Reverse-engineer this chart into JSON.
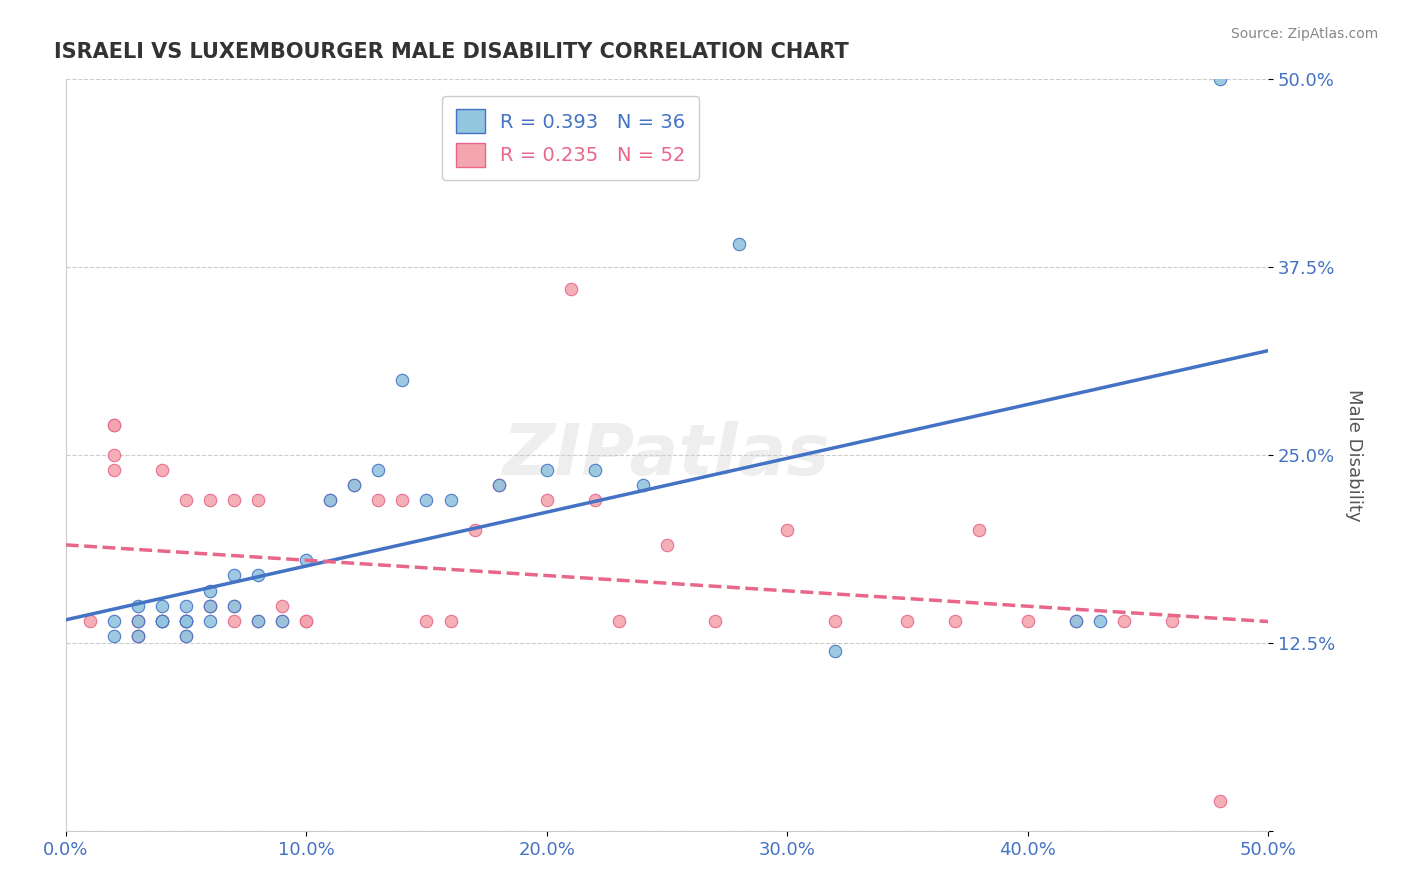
{
  "title": "ISRAELI VS LUXEMBOURGER MALE DISABILITY CORRELATION CHART",
  "source": "Source: ZipAtlas.com",
  "xlabel": "",
  "ylabel": "Male Disability",
  "xlim": [
    0.0,
    0.5
  ],
  "ylim": [
    0.0,
    0.5
  ],
  "xticks": [
    0.0,
    0.1,
    0.2,
    0.3,
    0.4,
    0.5
  ],
  "yticks": [
    0.0,
    0.125,
    0.25,
    0.375,
    0.5
  ],
  "xtick_labels": [
    "0.0%",
    "10.0%",
    "20.0%",
    "30.0%",
    "40.0%",
    "50.0%"
  ],
  "ytick_labels": [
    "",
    "12.5%",
    "25.0%",
    "37.5%",
    "50.0%"
  ],
  "israeli_R": 0.393,
  "israeli_N": 36,
  "luxembourger_R": 0.235,
  "luxembourger_N": 52,
  "israeli_color": "#92C5DE",
  "luxembourger_color": "#F4A6B0",
  "israeli_line_color": "#4472C4",
  "luxembourger_line_color": "#E8668A",
  "watermark": "ZIPatlas",
  "israeli_x": [
    0.02,
    0.02,
    0.03,
    0.03,
    0.03,
    0.04,
    0.04,
    0.04,
    0.05,
    0.05,
    0.05,
    0.05,
    0.06,
    0.06,
    0.06,
    0.07,
    0.07,
    0.08,
    0.08,
    0.09,
    0.1,
    0.11,
    0.12,
    0.13,
    0.14,
    0.15,
    0.16,
    0.18,
    0.2,
    0.22,
    0.24,
    0.28,
    0.32,
    0.42,
    0.43,
    0.48
  ],
  "israeli_y": [
    0.14,
    0.13,
    0.15,
    0.14,
    0.13,
    0.15,
    0.14,
    0.14,
    0.15,
    0.14,
    0.14,
    0.13,
    0.15,
    0.16,
    0.14,
    0.15,
    0.17,
    0.17,
    0.14,
    0.14,
    0.18,
    0.22,
    0.23,
    0.24,
    0.3,
    0.22,
    0.22,
    0.23,
    0.24,
    0.24,
    0.23,
    0.39,
    0.12,
    0.14,
    0.14,
    0.5
  ],
  "luxembourger_x": [
    0.01,
    0.02,
    0.02,
    0.02,
    0.02,
    0.03,
    0.03,
    0.03,
    0.03,
    0.04,
    0.04,
    0.04,
    0.05,
    0.05,
    0.05,
    0.05,
    0.06,
    0.06,
    0.06,
    0.07,
    0.07,
    0.07,
    0.08,
    0.08,
    0.09,
    0.09,
    0.1,
    0.1,
    0.11,
    0.12,
    0.13,
    0.14,
    0.15,
    0.16,
    0.17,
    0.18,
    0.2,
    0.21,
    0.22,
    0.23,
    0.25,
    0.27,
    0.3,
    0.32,
    0.35,
    0.37,
    0.38,
    0.4,
    0.42,
    0.44,
    0.46,
    0.48
  ],
  "luxembourger_y": [
    0.14,
    0.27,
    0.27,
    0.25,
    0.24,
    0.14,
    0.14,
    0.13,
    0.13,
    0.14,
    0.14,
    0.24,
    0.14,
    0.14,
    0.13,
    0.22,
    0.15,
    0.15,
    0.22,
    0.15,
    0.14,
    0.22,
    0.14,
    0.22,
    0.15,
    0.14,
    0.14,
    0.14,
    0.22,
    0.23,
    0.22,
    0.22,
    0.14,
    0.14,
    0.2,
    0.23,
    0.22,
    0.36,
    0.22,
    0.14,
    0.19,
    0.14,
    0.2,
    0.14,
    0.14,
    0.14,
    0.2,
    0.14,
    0.14,
    0.14,
    0.14,
    0.02
  ]
}
